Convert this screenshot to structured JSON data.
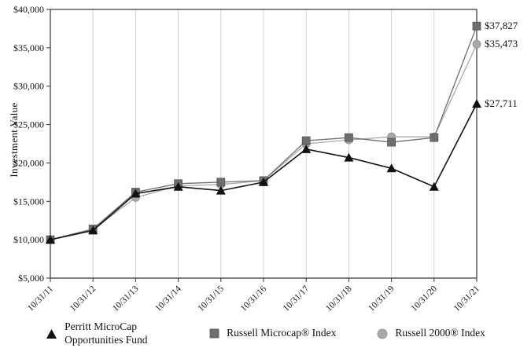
{
  "chart_data": {
    "type": "line",
    "title": "",
    "ylabel": "Investment Value",
    "xlabel": "",
    "categories": [
      "10/31/11",
      "10/31/12",
      "10/31/13",
      "10/31/14",
      "10/31/15",
      "10/31/16",
      "10/31/17",
      "10/31/18",
      "10/31/19",
      "10/31/20",
      "10/31/21"
    ],
    "ylim": [
      5000,
      40000
    ],
    "ytick_step": 5000,
    "yticks": [
      "$5,000",
      "$10,000",
      "$15,000",
      "$20,000",
      "$25,000",
      "$30,000",
      "$35,000",
      "$40,000"
    ],
    "grid": "vertical",
    "legend_position": "bottom",
    "series": [
      {
        "name": "Russell 2000® Index",
        "marker": "circle",
        "color": "#a9a9a9",
        "values": [
          10000,
          11300,
          15500,
          17000,
          17200,
          17700,
          22500,
          23000,
          23400,
          23400,
          35473
        ],
        "end_label": "$35,473"
      },
      {
        "name": "Russell Microcap® Index",
        "marker": "square",
        "color": "#6e6e6e",
        "values": [
          10000,
          11400,
          16200,
          17300,
          17500,
          17700,
          22900,
          23300,
          22700,
          23300,
          37827
        ],
        "end_label": "$37,827"
      },
      {
        "name": "Perritt MicroCap Opportunities Fund",
        "marker": "triangle",
        "color": "#111111",
        "values": [
          10000,
          11200,
          16000,
          16900,
          16400,
          17500,
          21800,
          20700,
          19300,
          16900,
          27711
        ],
        "end_label": "$27,711"
      }
    ],
    "end_labels": [
      "$37,827",
      "$35,473",
      "$27,711"
    ]
  },
  "colors": {
    "frame": "#333333",
    "grid": "#c9c9c9",
    "text": "#111111"
  }
}
